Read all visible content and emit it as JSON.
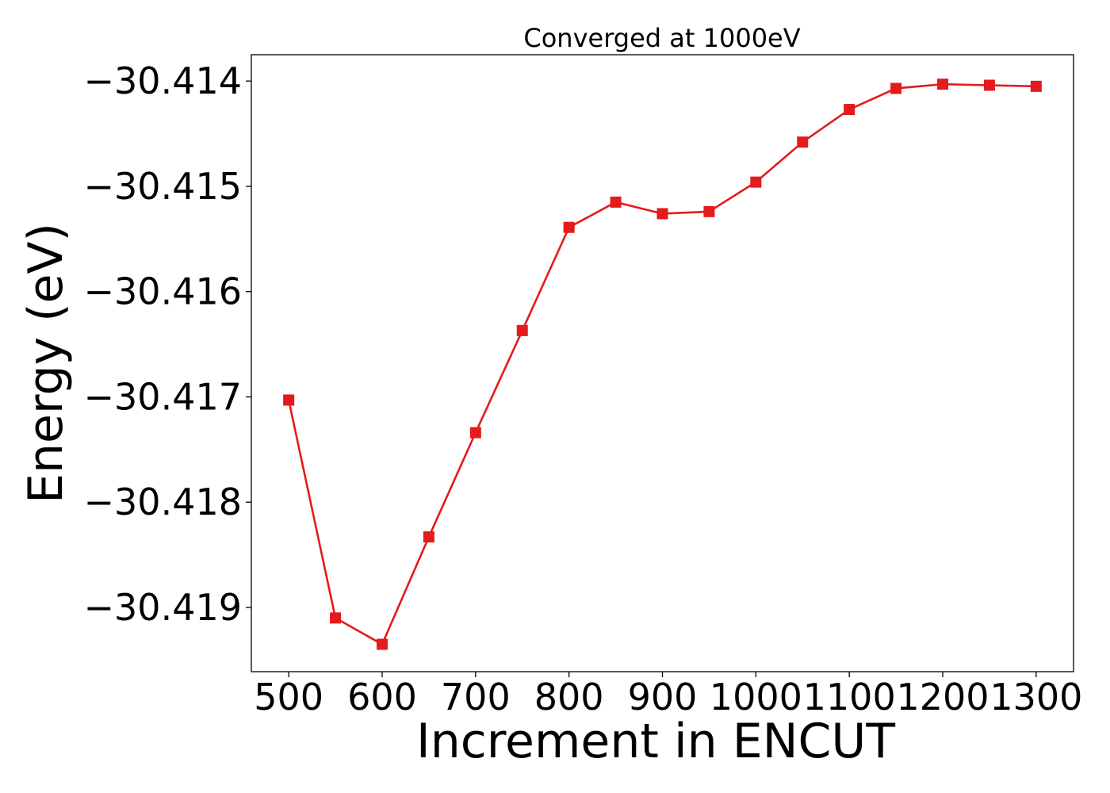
{
  "chart_data": {
    "type": "line",
    "title": "Converged at 1000eV",
    "xlabel": "Increment in ENCUT",
    "ylabel": "Energy (eV)",
    "xlim": [
      460,
      1340
    ],
    "ylim": [
      -30.41961,
      -30.41375
    ],
    "x_ticks": [
      500,
      600,
      700,
      800,
      900,
      1000,
      1100,
      1200,
      1300
    ],
    "x_tick_labels": [
      "500",
      "600",
      "700",
      "800",
      "900",
      "1000",
      "1100",
      "1200",
      "1300"
    ],
    "y_ticks": [
      -30.414,
      -30.415,
      -30.416,
      -30.417,
      -30.418,
      -30.419
    ],
    "y_tick_labels": [
      "−30.414",
      "−30.415",
      "−30.416",
      "−30.417",
      "−30.418",
      "−30.419"
    ],
    "grid": false,
    "marker": "square",
    "series": [
      {
        "color": "#e41a1c",
        "x": [
          500,
          550,
          600,
          650,
          700,
          750,
          800,
          850,
          900,
          950,
          1000,
          1050,
          1100,
          1150,
          1200,
          1250,
          1300
        ],
        "y": [
          -30.41703,
          -30.4191,
          -30.41935,
          -30.41833,
          -30.41734,
          -30.41637,
          -30.41539,
          -30.41515,
          -30.41526,
          -30.41524,
          -30.41496,
          -30.41458,
          -30.41427,
          -30.41407,
          -30.41403,
          -30.41404,
          -30.41405
        ]
      }
    ]
  }
}
